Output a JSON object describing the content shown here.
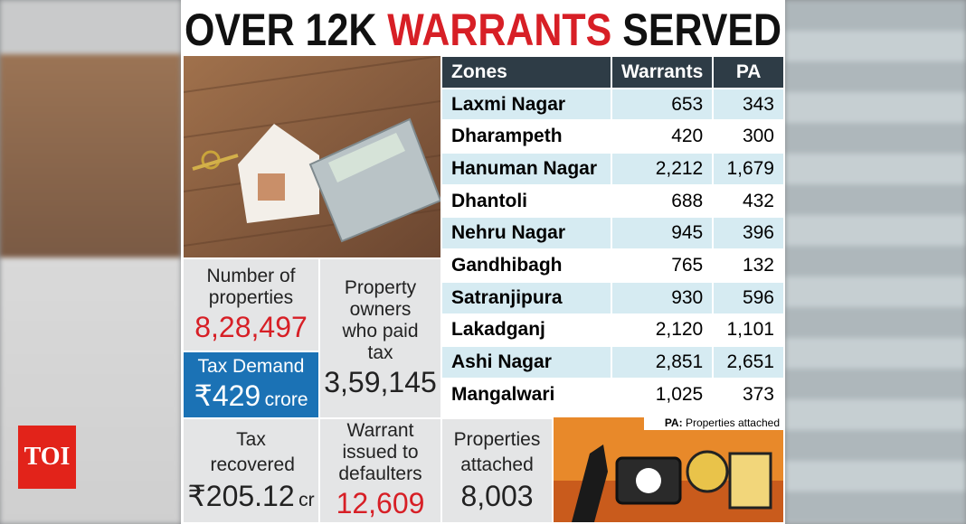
{
  "title": {
    "part1": "OVER 12K",
    "part2": "WARRANTS",
    "part3": "SERVED"
  },
  "table": {
    "header": [
      "Zones",
      "Warrants",
      "PA"
    ],
    "rows": [
      [
        "Laxmi Nagar",
        "653",
        "343"
      ],
      [
        "Dharampeth",
        "420",
        "300"
      ],
      [
        "Hanuman Nagar",
        "2,212",
        "1,679"
      ],
      [
        "Dhantoli",
        "688",
        "432"
      ],
      [
        "Nehru Nagar",
        "945",
        "396"
      ],
      [
        "Gandhibagh",
        "765",
        "132"
      ],
      [
        "Satranjipura",
        "930",
        "596"
      ],
      [
        "Lakadganj",
        "2,120",
        "1,101"
      ],
      [
        "Ashi Nagar",
        "2,851",
        "2,651"
      ],
      [
        "Mangalwari",
        "1,025",
        "373"
      ]
    ]
  },
  "stats": {
    "properties": {
      "label": "Number of properties",
      "value": "8,28,497"
    },
    "tax_demand": {
      "label": "Tax Demand",
      "value": "₹429",
      "unit": "crore"
    },
    "owners_paid": {
      "label": "Property owners who paid tax",
      "value": "3,59,145"
    },
    "tax_recovered": {
      "label": "Tax recovered",
      "value": "₹205.12",
      "unit": "cr"
    },
    "warrants_issued": {
      "label": "Warrant issued to defaulters",
      "value": "12,609"
    },
    "properties_attached": {
      "label": "Properties attached",
      "value": "8,003"
    }
  },
  "note": {
    "abbr": "PA:",
    "text": "Properties attached"
  },
  "logo": "TOI"
}
